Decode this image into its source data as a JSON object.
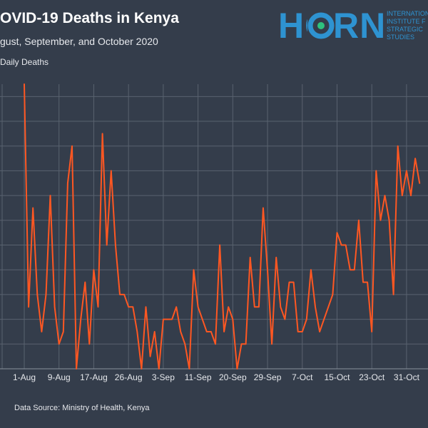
{
  "header": {
    "title": "OVID-19 Deaths in Kenya",
    "subtitle": "gust, September, and October 2020"
  },
  "logo": {
    "word": "HORN",
    "lines": [
      "INTERNATIONAL",
      "INSTITUTE F",
      "STRATEGIC",
      "STUDIES"
    ]
  },
  "footer": {
    "source": "Data Source: Ministry of Health, Kenya"
  },
  "colors": {
    "background": "#343d4b",
    "line": "#ff5722",
    "grid": "#59626f",
    "logo": "#2e93d1"
  },
  "chart_data": {
    "type": "line",
    "ylabel": "Daily Deaths",
    "grid": true,
    "x_ticks": [
      "1-Aug",
      "9-Aug",
      "17-Aug",
      "26-Aug",
      "3-Sep",
      "11-Sep",
      "20-Sep",
      "29-Sep",
      "7-Oct",
      "15-Oct",
      "23-Oct",
      "31-Oct"
    ],
    "ylim": [
      0,
      23
    ],
    "series": [
      {
        "values": [
          23,
          5,
          13,
          6,
          3,
          6,
          14,
          5,
          2,
          3,
          15,
          18,
          0,
          4,
          7,
          2,
          8,
          5,
          19,
          10,
          16,
          10,
          6,
          6,
          5,
          5,
          3,
          0,
          5,
          1,
          3,
          0,
          4,
          4,
          4,
          5,
          3,
          2,
          0,
          8,
          5,
          4,
          3,
          3,
          2,
          10,
          3,
          5,
          4,
          0,
          2,
          2,
          9,
          5,
          5,
          13,
          8,
          2,
          9,
          5,
          4,
          7,
          7,
          3,
          3,
          4,
          8,
          5,
          3,
          4,
          5,
          6,
          11,
          10,
          10,
          8,
          8,
          12,
          7,
          7,
          3,
          16,
          12,
          14,
          12,
          6,
          18,
          14,
          16,
          14,
          17,
          15
        ]
      }
    ]
  }
}
